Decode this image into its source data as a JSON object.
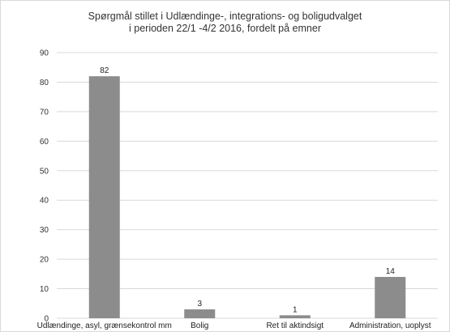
{
  "chart_data": {
    "type": "bar",
    "title": [
      "Spørgmål stillet i Udlændinge-, integrations- og boligudvalget",
      "i perioden 22/1 -4/2 2016, fordelt på emner"
    ],
    "categories": [
      "Udlændinge, asyl, grænsekontrol mm",
      "Bolig",
      "Ret til aktindsigt",
      "Administration, uoplyst"
    ],
    "values": [
      82,
      3,
      1,
      14
    ],
    "data_labels": [
      "82",
      "3",
      "1",
      "14"
    ],
    "ylim": [
      0,
      90
    ],
    "yticks": [
      0,
      10,
      20,
      30,
      40,
      50,
      60,
      70,
      80,
      90
    ],
    "xlabel": "",
    "ylabel": "",
    "grid": true,
    "legend": "none",
    "bar_color": "#8c8c8c",
    "grid_color": "#d9d9d9"
  }
}
